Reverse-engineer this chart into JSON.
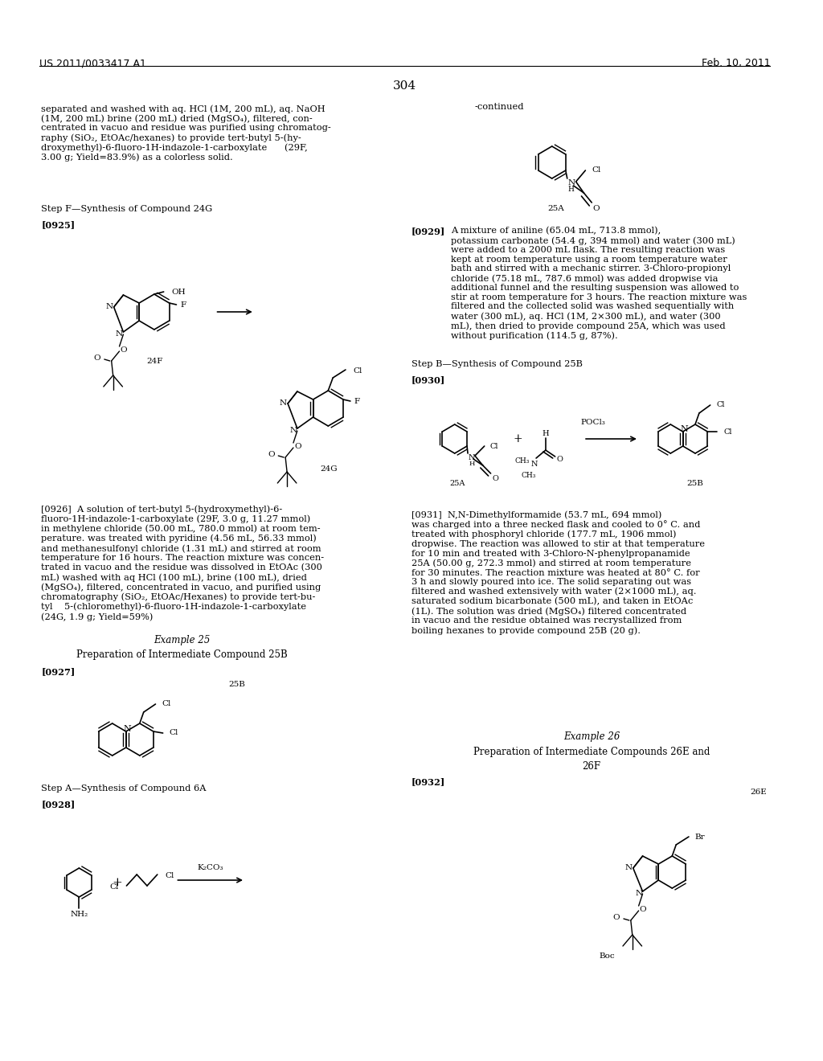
{
  "bg_color": "#ffffff",
  "header_left": "US 2011/0033417 A1",
  "header_right": "Feb. 10, 2011",
  "page_number": "304"
}
